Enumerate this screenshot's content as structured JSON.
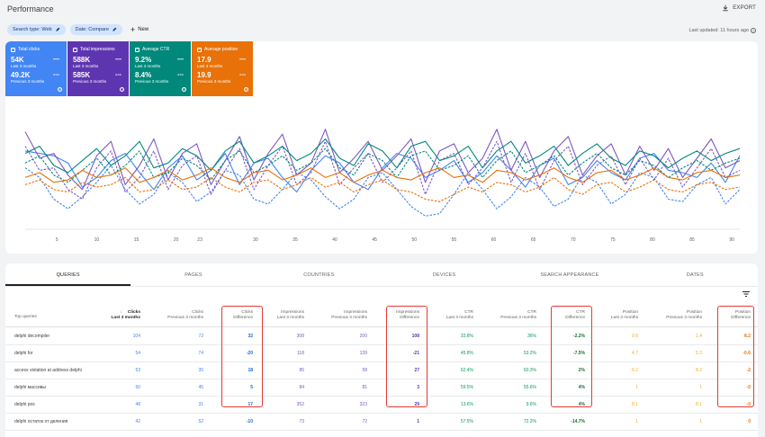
{
  "header": {
    "title": "Performance",
    "export_label": "EXPORT"
  },
  "filters": {
    "search_type": "Search type: Web",
    "date": "Date: Compare",
    "new_label": "New",
    "last_updated": "Last updated: 11 hours ago"
  },
  "metrics": [
    {
      "label": "Total clicks",
      "current": "54K",
      "current_period": "Last 3 months",
      "previous": "49.2K",
      "previous_period": "Previous 3 months",
      "color": "#4285f4"
    },
    {
      "label": "Total impressions",
      "current": "588K",
      "current_period": "Last 3 months",
      "previous": "585K",
      "previous_period": "Previous 3 months",
      "color": "#5e35b1"
    },
    {
      "label": "Average CTR",
      "current": "9.2%",
      "current_period": "Last 3 months",
      "previous": "8.4%",
      "previous_period": "Previous 3 months",
      "color": "#00897b"
    },
    {
      "label": "Average position",
      "current": "17.9",
      "current_period": "Last 3 months",
      "previous": "19.9",
      "previous_period": "Previous 3 months",
      "color": "#e8710a"
    }
  ],
  "chart_data": {
    "type": "line",
    "x_ticks": [
      5,
      10,
      15,
      20,
      23,
      30,
      35,
      40,
      45,
      50,
      55,
      60,
      65,
      70,
      75,
      80,
      85,
      90
    ],
    "series": [
      {
        "color": "#4285f4",
        "dashed": false,
        "values": [
          62,
          60,
          58,
          52,
          32,
          40,
          54,
          60,
          44,
          30,
          48,
          58,
          38,
          46,
          60,
          34,
          52,
          56,
          40,
          28,
          46,
          58,
          52,
          36,
          30,
          48,
          60,
          56,
          40,
          46,
          54,
          36,
          44,
          58,
          46,
          32,
          50,
          56,
          34,
          40,
          54,
          44,
          38,
          56,
          60,
          46,
          44,
          40,
          52,
          36,
          58
        ]
      },
      {
        "color": "#4285f4",
        "dashed": true,
        "values": [
          48,
          40,
          22,
          14,
          24,
          36,
          50,
          30,
          18,
          26,
          44,
          36,
          20,
          28,
          46,
          42,
          22,
          18,
          30,
          44,
          38,
          24,
          14,
          22,
          40,
          44,
          30,
          16,
          8,
          10,
          26,
          44,
          30,
          14,
          24,
          40,
          32,
          16,
          22,
          42,
          36,
          18,
          26,
          44,
          40,
          22,
          20,
          34,
          40,
          18,
          30
        ]
      },
      {
        "color": "#7e57c2",
        "dashed": false,
        "values": [
          78,
          56,
          60,
          42,
          30,
          58,
          70,
          34,
          50,
          72,
          38,
          60,
          68,
          34,
          54,
          74,
          38,
          60,
          76,
          42,
          52,
          80,
          44,
          56,
          70,
          46,
          58,
          72,
          36,
          62,
          68,
          44,
          56,
          80,
          46,
          70,
          40,
          62,
          74,
          42,
          58,
          68,
          42,
          66,
          46,
          64,
          40,
          56,
          72,
          48,
          54
        ]
      },
      {
        "color": "#7e57c2",
        "dashed": true,
        "values": [
          66,
          46,
          48,
          30,
          22,
          48,
          62,
          28,
          40,
          62,
          30,
          50,
          58,
          26,
          46,
          64,
          30,
          50,
          66,
          34,
          44,
          70,
          34,
          48,
          60,
          36,
          48,
          62,
          26,
          54,
          60,
          34,
          48,
          70,
          36,
          60,
          30,
          54,
          66,
          34,
          50,
          58,
          34,
          56,
          38,
          56,
          32,
          48,
          64,
          40,
          46
        ]
      },
      {
        "color": "#00897b",
        "dashed": false,
        "values": [
          60,
          66,
          50,
          44,
          54,
          64,
          50,
          58,
          70,
          48,
          52,
          64,
          58,
          46,
          62,
          70,
          52,
          58,
          66,
          54,
          60,
          72,
          56,
          50,
          68,
          62,
          48,
          66,
          70,
          54,
          58,
          66,
          48,
          62,
          70,
          52,
          58,
          66,
          50,
          60,
          68,
          56,
          50,
          62,
          58,
          48,
          56,
          62,
          54,
          60,
          64
        ]
      },
      {
        "color": "#00897b",
        "dashed": true,
        "values": [
          52,
          58,
          42,
          36,
          46,
          56,
          42,
          50,
          62,
          40,
          44,
          56,
          50,
          38,
          54,
          62,
          44,
          50,
          58,
          46,
          52,
          64,
          48,
          42,
          60,
          54,
          40,
          58,
          62,
          46,
          50,
          58,
          40,
          54,
          62,
          44,
          50,
          58,
          42,
          52,
          60,
          48,
          42,
          54,
          50,
          40,
          48,
          54,
          46,
          52,
          56
        ]
      },
      {
        "color": "#e8710a",
        "dashed": false,
        "values": [
          40,
          44,
          36,
          38,
          46,
          40,
          42,
          48,
          36,
          40,
          46,
          38,
          42,
          48,
          40,
          36,
          44,
          46,
          38,
          42,
          48,
          40,
          44,
          36,
          42,
          46,
          40,
          38,
          44,
          48,
          40,
          42,
          36,
          46,
          44,
          38,
          42,
          48,
          40,
          36,
          44,
          46,
          38,
          42,
          48,
          40,
          38,
          44,
          46,
          40,
          42
        ]
      },
      {
        "color": "#e8710a",
        "dashed": true,
        "values": [
          34,
          38,
          30,
          28,
          36,
          32,
          34,
          40,
          28,
          30,
          38,
          30,
          32,
          40,
          32,
          28,
          36,
          38,
          30,
          34,
          40,
          32,
          36,
          28,
          34,
          38,
          30,
          28,
          22,
          20,
          26,
          32,
          28,
          36,
          34,
          28,
          32,
          40,
          30,
          26,
          34,
          36,
          28,
          32,
          38,
          30,
          28,
          34,
          36,
          30,
          32
        ]
      }
    ]
  },
  "tabs": [
    "QUERIES",
    "PAGES",
    "COUNTRIES",
    "DEVICES",
    "SEARCH APPEARANCE",
    "DATES"
  ],
  "table": {
    "headers": {
      "query": "Top queries",
      "clicks_last": [
        "Clicks",
        "Last 3 months"
      ],
      "clicks_prev": [
        "Clicks",
        "Previous 3 months"
      ],
      "clicks_diff": [
        "Clicks",
        "Difference"
      ],
      "impr_last": [
        "Impressions",
        "Last 3 months"
      ],
      "impr_prev": [
        "Impressions",
        "Previous 3 months"
      ],
      "impr_diff": [
        "Impressions",
        "Difference"
      ],
      "ctr_last": [
        "CTR",
        "Last 3 months"
      ],
      "ctr_prev": [
        "CTR",
        "Previous 3 months"
      ],
      "ctr_diff": [
        "CTR",
        "Difference"
      ],
      "pos_last": [
        "Position",
        "Last 3 months"
      ],
      "pos_prev": [
        "Position",
        "Previous 3 months"
      ],
      "pos_diff": [
        "Position",
        "Difference"
      ]
    },
    "rows": [
      {
        "query": "delphi decompiler",
        "clicks_last": "104",
        "clicks_prev": "72",
        "clicks_diff": "32",
        "impr_last": "308",
        "impr_prev": "200",
        "impr_diff": "108",
        "ctr_last": "33.8%",
        "ctr_prev": "36%",
        "ctr_diff": "-2.2%",
        "pos_last": "9.6",
        "pos_prev": "1.4",
        "pos_diff": "8.2"
      },
      {
        "query": "delphi for",
        "clicks_last": "54",
        "clicks_prev": "74",
        "clicks_diff": "-20",
        "impr_last": "118",
        "impr_prev": "139",
        "impr_diff": "-21",
        "ctr_last": "45.8%",
        "ctr_prev": "53.2%",
        "ctr_diff": "-7.5%",
        "pos_last": "4.7",
        "pos_prev": "5.3",
        "pos_diff": "-0.6"
      },
      {
        "query": "access violation at address delphi",
        "clicks_last": "53",
        "clicks_prev": "35",
        "clicks_diff": "18",
        "impr_last": "85",
        "impr_prev": "58",
        "impr_diff": "27",
        "ctr_last": "62.4%",
        "ctr_prev": "60.3%",
        "ctr_diff": "2%",
        "pos_last": "6.2",
        "pos_prev": "8.2",
        "pos_diff": "-2"
      },
      {
        "query": "delphi массивы",
        "clicks_last": "50",
        "clicks_prev": "45",
        "clicks_diff": "5",
        "impr_last": "84",
        "impr_prev": "81",
        "impr_diff": "3",
        "ctr_last": "59.5%",
        "ctr_prev": "55.6%",
        "ctr_diff": "4%",
        "pos_last": "1",
        "pos_prev": "1",
        "pos_diff": "-0"
      },
      {
        "query": "delphi pos",
        "clicks_last": "48",
        "clicks_prev": "31",
        "clicks_diff": "17",
        "impr_last": "352",
        "impr_prev": "323",
        "impr_diff": "29",
        "ctr_last": "13.6%",
        "ctr_prev": "9.6%",
        "ctr_diff": "4%",
        "pos_last": "8.1",
        "pos_prev": "8.1",
        "pos_diff": "-0"
      },
      {
        "query": "delphi остаток от деления",
        "clicks_last": "42",
        "clicks_prev": "52",
        "clicks_diff": "-10",
        "impr_last": "73",
        "impr_prev": "72",
        "impr_diff": "1",
        "ctr_last": "57.5%",
        "ctr_prev": "72.2%",
        "ctr_diff": "-14.7%",
        "pos_last": "1",
        "pos_prev": "1",
        "pos_diff": "0"
      }
    ]
  }
}
